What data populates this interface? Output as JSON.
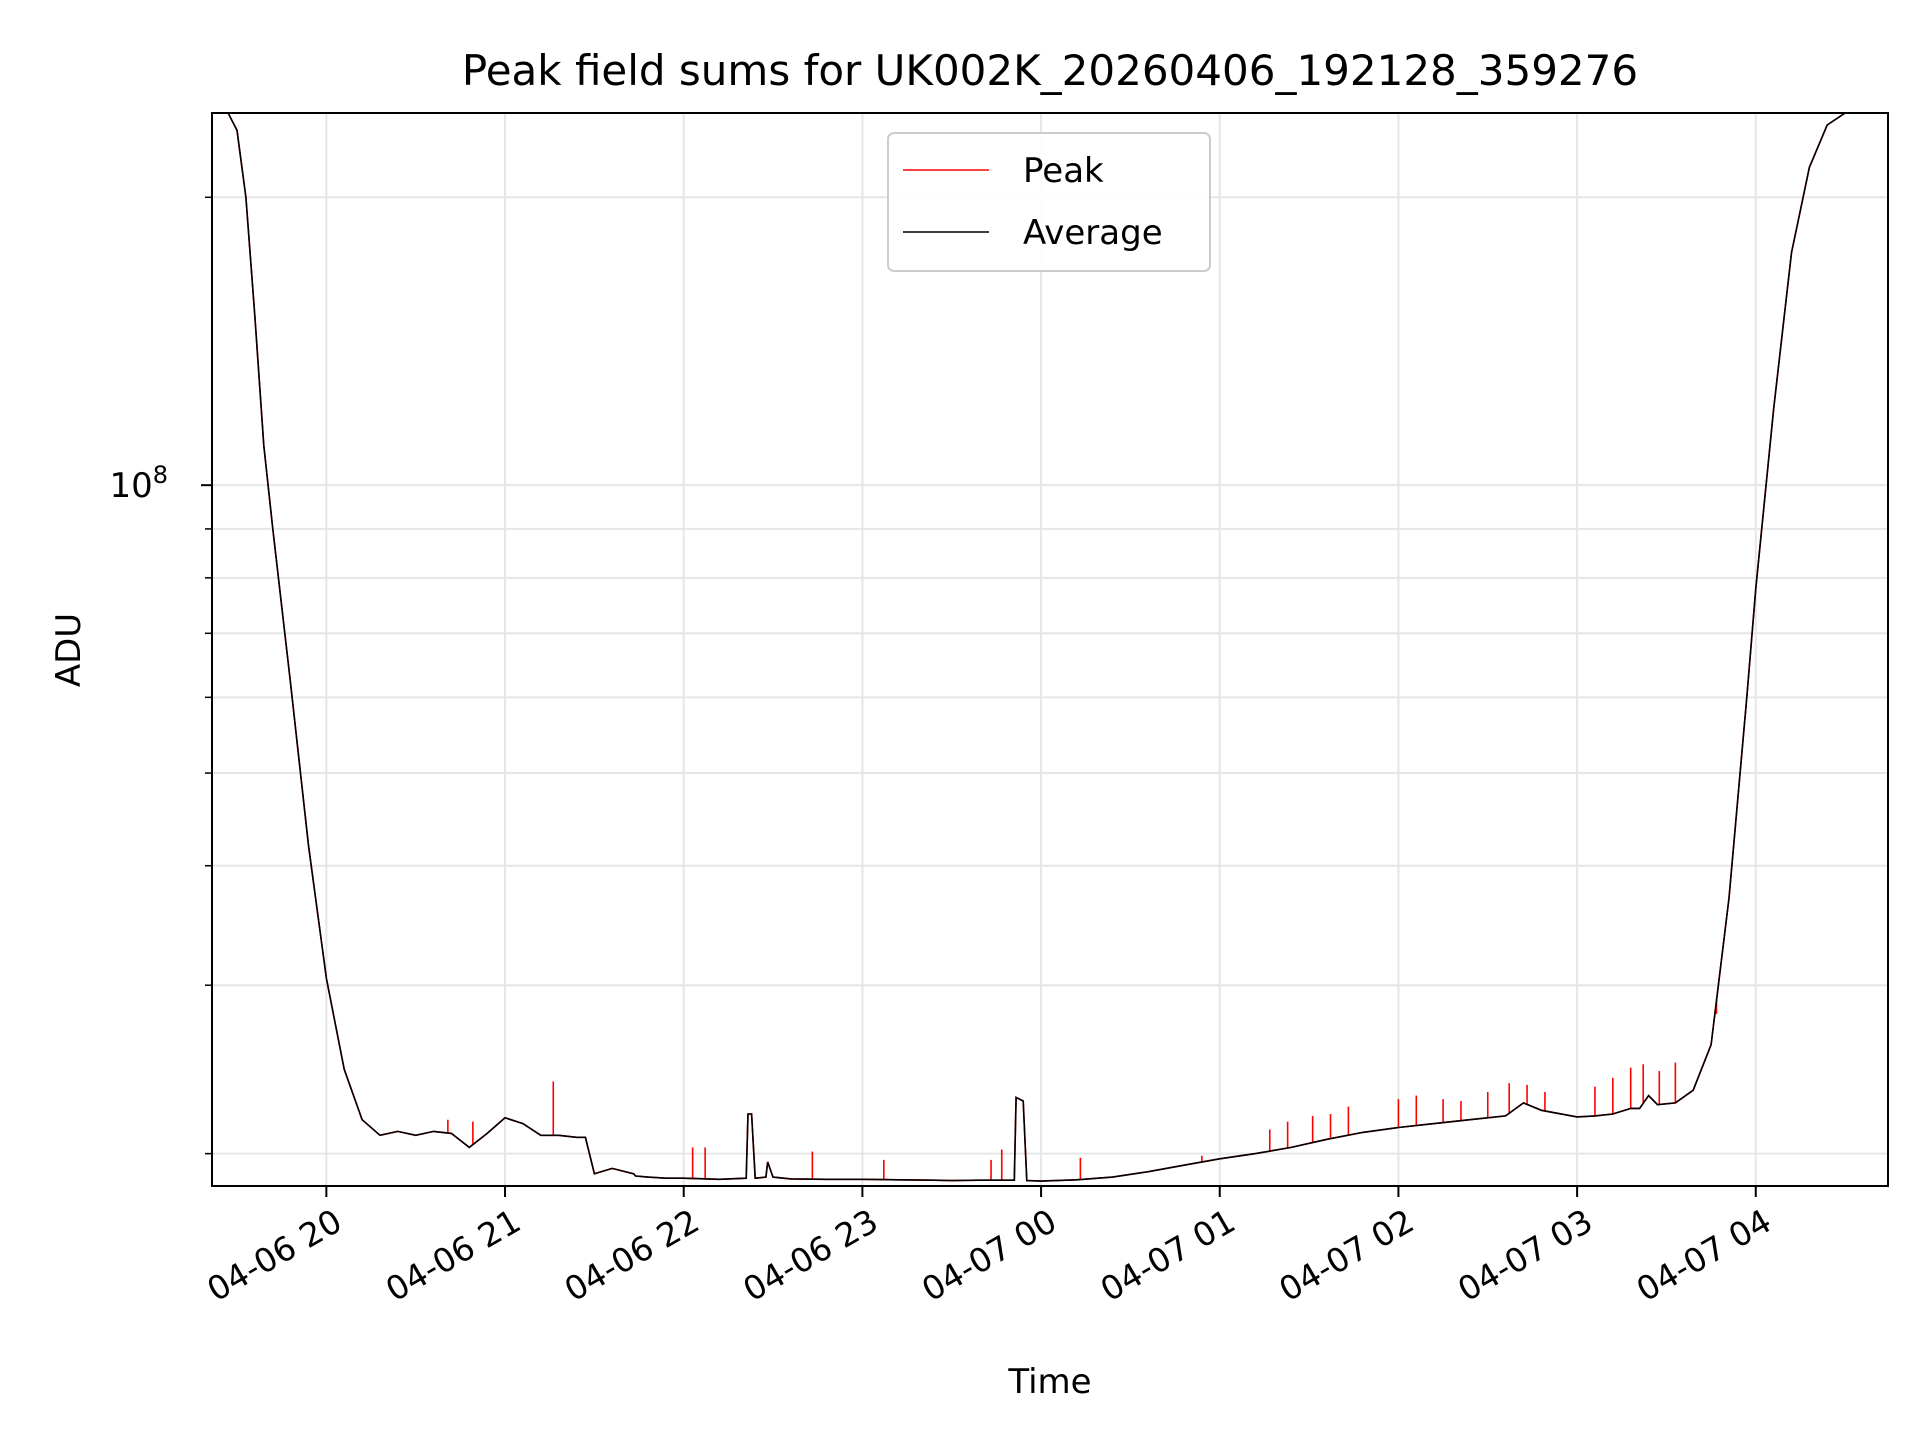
{
  "chart_data": {
    "type": "line",
    "title": "Peak field sums for UK002K_20260406_192128_359276",
    "xlabel": "Time",
    "ylabel": "ADU",
    "yscale": "log",
    "y_major_tick": {
      "value": 100000000,
      "label_base": "10",
      "label_exp": "8"
    },
    "y_minor_ticks": [
      20000000,
      30000000,
      40000000,
      50000000,
      60000000,
      70000000,
      80000000,
      90000000,
      200000000
    ],
    "ylim": [
      18500000,
      245000000
    ],
    "xlim_hours": [
      -0.64,
      8.74
    ],
    "x_ticks": [
      {
        "label": "04-06 20",
        "h": 0
      },
      {
        "label": "04-06 21",
        "h": 1
      },
      {
        "label": "04-06 22",
        "h": 2
      },
      {
        "label": "04-06 23",
        "h": 3
      },
      {
        "label": "04-07 00",
        "h": 4
      },
      {
        "label": "04-07 01",
        "h": 5
      },
      {
        "label": "04-07 02",
        "h": 6
      },
      {
        "label": "04-07 03",
        "h": 7
      },
      {
        "label": "04-07 04",
        "h": 8
      }
    ],
    "x_unit_note": "h = hours since 2026-04-06 20:00",
    "grid": true,
    "legend": {
      "position": "top-center",
      "entries": [
        {
          "label": "Peak",
          "color": "#ff0000"
        },
        {
          "label": "Average",
          "color": "#000000"
        }
      ]
    },
    "series": [
      {
        "name": "Average",
        "color": "#000000",
        "x": [
          -0.64,
          -0.55,
          -0.5,
          -0.45,
          -0.4,
          -0.35,
          -0.3,
          -0.2,
          -0.1,
          0.0,
          0.1,
          0.2,
          0.3,
          0.4,
          0.5,
          0.6,
          0.7,
          0.8,
          0.9,
          1.0,
          1.1,
          1.2,
          1.3,
          1.4,
          1.45,
          1.5,
          1.6,
          1.72,
          1.73,
          1.8,
          1.9,
          2.0,
          2.2,
          2.35,
          2.36,
          2.38,
          2.4,
          2.46,
          2.47,
          2.5,
          2.6,
          2.8,
          3.0,
          3.2,
          3.4,
          3.5,
          3.65,
          3.85,
          3.86,
          3.9,
          3.92,
          4.0,
          4.2,
          4.4,
          4.6,
          4.8,
          5.0,
          5.2,
          5.4,
          5.6,
          5.8,
          6.0,
          6.2,
          6.4,
          6.6,
          6.7,
          6.8,
          7.0,
          7.1,
          7.2,
          7.3,
          7.35,
          7.4,
          7.45,
          7.55,
          7.65,
          7.75,
          7.85,
          7.95,
          8.0,
          8.1,
          8.2,
          8.3,
          8.4,
          8.5,
          8.6,
          8.74
        ],
        "y": [
          245000000,
          245000000,
          235000000,
          200000000,
          150000000,
          110000000,
          90000000,
          62000000,
          42000000,
          30500000,
          24500000,
          21700000,
          20900000,
          21100000,
          20900000,
          21100000,
          21000000,
          20300000,
          21000000,
          21800000,
          21500000,
          20900000,
          20900000,
          20800000,
          20800000,
          19050000,
          19300000,
          19050000,
          18950000,
          18900000,
          18850000,
          18850000,
          18800000,
          18850000,
          22000000,
          22000000,
          18850000,
          18900000,
          19600000,
          18900000,
          18820000,
          18800000,
          18800000,
          18780000,
          18760000,
          18740000,
          18760000,
          18760000,
          22900000,
          22700000,
          18740000,
          18720000,
          18780000,
          18900000,
          19150000,
          19450000,
          19750000,
          20000000,
          20300000,
          20700000,
          21050000,
          21300000,
          21500000,
          21700000,
          21900000,
          22600000,
          22200000,
          21850000,
          21900000,
          22000000,
          22300000,
          22300000,
          23000000,
          22500000,
          22600000,
          23300000,
          26000000,
          37000000,
          60000000,
          78000000,
          120000000,
          175000000,
          215000000,
          238000000,
          245000000,
          245000000,
          245000000
        ]
      },
      {
        "name": "Peak",
        "color": "#ff0000",
        "follows": "Average",
        "spikes": [
          {
            "x": 0.68,
            "y": 21700000
          },
          {
            "x": 0.82,
            "y": 21600000
          },
          {
            "x": 1.27,
            "y": 23800000
          },
          {
            "x": 2.05,
            "y": 20300000
          },
          {
            "x": 2.12,
            "y": 20300000
          },
          {
            "x": 2.72,
            "y": 20100000
          },
          {
            "x": 3.12,
            "y": 19700000
          },
          {
            "x": 3.72,
            "y": 19700000
          },
          {
            "x": 3.78,
            "y": 20200000
          },
          {
            "x": 4.22,
            "y": 19800000
          },
          {
            "x": 4.9,
            "y": 19900000
          },
          {
            "x": 5.28,
            "y": 21200000
          },
          {
            "x": 5.38,
            "y": 21600000
          },
          {
            "x": 5.52,
            "y": 21900000
          },
          {
            "x": 5.62,
            "y": 22000000
          },
          {
            "x": 5.72,
            "y": 22400000
          },
          {
            "x": 6.0,
            "y": 22800000
          },
          {
            "x": 6.1,
            "y": 23000000
          },
          {
            "x": 6.25,
            "y": 22800000
          },
          {
            "x": 6.35,
            "y": 22700000
          },
          {
            "x": 6.5,
            "y": 23200000
          },
          {
            "x": 6.62,
            "y": 23700000
          },
          {
            "x": 6.72,
            "y": 23600000
          },
          {
            "x": 6.82,
            "y": 23200000
          },
          {
            "x": 7.1,
            "y": 23500000
          },
          {
            "x": 7.2,
            "y": 24000000
          },
          {
            "x": 7.3,
            "y": 24600000
          },
          {
            "x": 7.37,
            "y": 24800000
          },
          {
            "x": 7.46,
            "y": 24400000
          },
          {
            "x": 7.55,
            "y": 24900000
          },
          {
            "x": 7.78,
            "y": 28000000
          }
        ]
      }
    ]
  }
}
